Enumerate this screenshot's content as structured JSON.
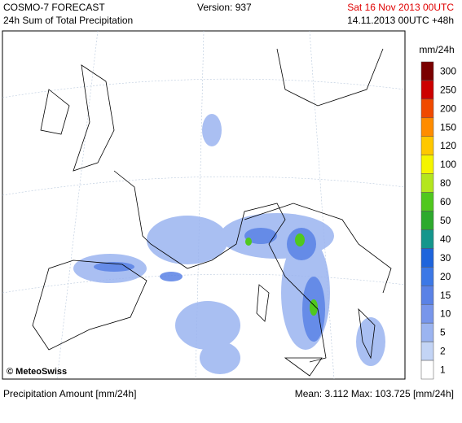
{
  "header": {
    "title": "COSMO-7 FORECAST",
    "subtitle": "24h Sum of Total Precipitation",
    "version": "Version: 937",
    "valid": "Sat 16 Nov 2013 00UTC",
    "run": "14.11.2013 00UTC +48h"
  },
  "legend": {
    "unit": "mm/24h",
    "items": [
      {
        "label": "300",
        "color": "#7a0000"
      },
      {
        "label": "250",
        "color": "#cc0000"
      },
      {
        "label": "200",
        "color": "#f04a00"
      },
      {
        "label": "150",
        "color": "#ff8c00"
      },
      {
        "label": "120",
        "color": "#ffc800"
      },
      {
        "label": "100",
        "color": "#f5f500"
      },
      {
        "label": "80",
        "color": "#b4e61e"
      },
      {
        "label": "60",
        "color": "#50c81e"
      },
      {
        "label": "50",
        "color": "#2daa2d"
      },
      {
        "label": "40",
        "color": "#14968c"
      },
      {
        "label": "30",
        "color": "#1e64dc"
      },
      {
        "label": "20",
        "color": "#3c78e6"
      },
      {
        "label": "15",
        "color": "#5a82e6"
      },
      {
        "label": "10",
        "color": "#7896eb"
      },
      {
        "label": "5",
        "color": "#9bb4f0"
      },
      {
        "label": "2",
        "color": "#c3d4f5"
      },
      {
        "label": "1",
        "color": "#ffffff"
      }
    ]
  },
  "copyright": "© MeteoSwiss",
  "footer": {
    "left": "Precipitation Amount [mm/24h]",
    "right": "Mean:  3.112 Max: 103.725 [mm/24h]"
  }
}
